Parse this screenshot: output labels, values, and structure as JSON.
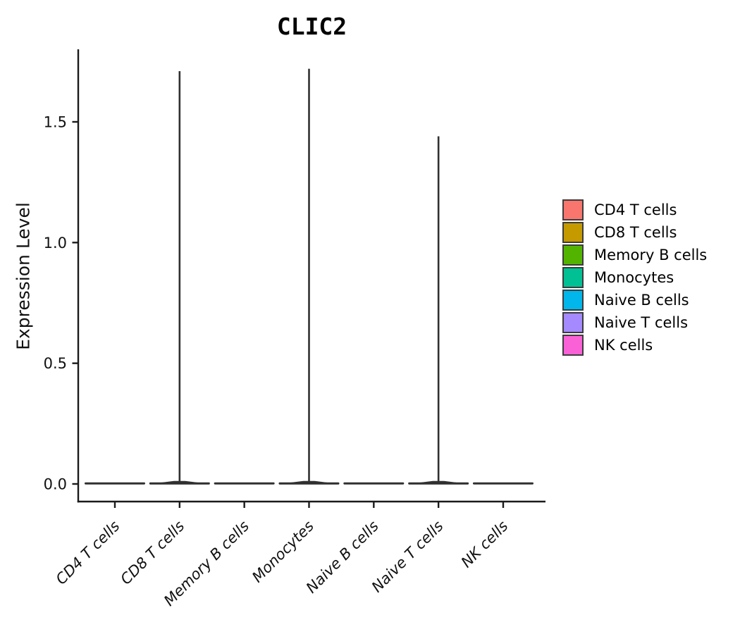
{
  "chart_data": {
    "type": "violin",
    "title": "CLIC2",
    "xlabel": "",
    "ylabel": "Expression Level",
    "categories": [
      "CD4 T cells",
      "CD8 T cells",
      "Memory B cells",
      "Monocytes",
      "Naive B cells",
      "Naive T cells",
      "NK cells"
    ],
    "series": [
      {
        "name": "CD4 T cells",
        "color": "#F8766D",
        "max_expression": 0.0
      },
      {
        "name": "CD8 T cells",
        "color": "#C49A00",
        "max_expression": 1.71
      },
      {
        "name": "Memory B cells",
        "color": "#53B400",
        "max_expression": 0.0
      },
      {
        "name": "Monocytes",
        "color": "#00C094",
        "max_expression": 1.72
      },
      {
        "name": "Naive B cells",
        "color": "#00B6EB",
        "max_expression": 0.0
      },
      {
        "name": "Naive T cells",
        "color": "#A58AFF",
        "max_expression": 1.44
      },
      {
        "name": "NK cells",
        "color": "#FB61D7",
        "max_expression": 0.0
      }
    ],
    "yticks": [
      0.0,
      0.5,
      1.0,
      1.5
    ],
    "ytick_labels": [
      "0.0",
      "0.5",
      "1.0",
      "1.5"
    ],
    "ylim": [
      0,
      1.75
    ],
    "grid": false,
    "legend_position": "right",
    "background_color": "#FFFFFF",
    "axis_color": "#1A1A1A",
    "violin_outline_color": "#303030",
    "tick_label_color": "#111111",
    "legend_key_border_color": "#3C3C3C"
  }
}
